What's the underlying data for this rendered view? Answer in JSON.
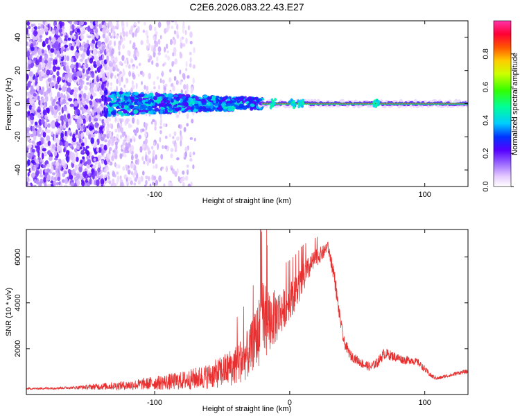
{
  "chart_data": [
    {
      "type": "heatmap",
      "title": "C2E6.2026.083.22.43.E27",
      "xlabel": "Height of straight line (km)",
      "ylabel": "Frequency (Hz)",
      "xlim": [
        -195,
        132
      ],
      "ylim": [
        -50,
        50
      ],
      "xticks": [
        -100,
        0,
        100
      ],
      "xtick_labels": [
        "-100",
        "",
        "100"
      ],
      "yticks": [
        -40,
        -20,
        0,
        20,
        40
      ],
      "ytick_labels": [
        "-40",
        "-20",
        "0",
        "20",
        "40"
      ],
      "colorbar": {
        "label": "Normalized spectral amplitude",
        "range": [
          0,
          1
        ],
        "ticks": [
          0.0,
          0.2,
          0.4,
          0.6,
          0.8
        ],
        "tick_labels": [
          "0.0",
          "0.2",
          "0.4",
          "0.6",
          "0.8"
        ]
      },
      "regions": [
        {
          "description": "sparse broadband noise",
          "x_range": [
            -195,
            -135
          ],
          "intensity": 0.12
        },
        {
          "description": "fading broadband noise",
          "x_range": [
            -135,
            -70
          ],
          "intensity": 0.05
        },
        {
          "description": "meteor echo onset",
          "x": -137,
          "freq_range": [
            -8,
            8
          ],
          "intensity": 0.3
        },
        {
          "description": "scattered echo band",
          "x_range": [
            -135,
            -20
          ],
          "freq_range": [
            -7,
            7
          ],
          "intensity": 0.35
        },
        {
          "description": "strong narrow line",
          "x_range": [
            -20,
            132
          ],
          "freq": 0,
          "intensity": 0.95
        },
        {
          "description": "line perturbations",
          "x": [
            -12,
            2,
            8,
            64
          ],
          "intensity": 0.4
        }
      ]
    },
    {
      "type": "line",
      "xlabel": "Height of straight line (km)",
      "ylabel": "SNR (10 * v/v)",
      "xlim": [
        -195,
        132
      ],
      "ylim": [
        0,
        7200
      ],
      "xticks": [
        -100,
        0,
        100
      ],
      "xtick_labels": [
        "-100",
        "0",
        "100"
      ],
      "yticks": [
        2000,
        4000,
        6000
      ],
      "ytick_labels": [
        "2000",
        "4000",
        "6000"
      ],
      "color": "#e83030",
      "series": [
        {
          "name": "SNR",
          "x": [
            -195,
            -160,
            -140,
            -120,
            -100,
            -80,
            -60,
            -50,
            -40,
            -30,
            -25,
            -20,
            -15,
            -10,
            -5,
            0,
            5,
            10,
            15,
            20,
            25,
            28,
            30,
            33,
            36,
            40,
            45,
            50,
            55,
            60,
            65,
            70,
            75,
            80,
            85,
            90,
            95,
            100,
            105,
            110,
            115,
            120,
            125,
            132
          ],
          "values": [
            250,
            300,
            350,
            400,
            500,
            600,
            800,
            1000,
            1300,
            1800,
            2500,
            3000,
            3200,
            3400,
            3700,
            4100,
            4500,
            5000,
            5600,
            6000,
            6200,
            6500,
            6000,
            5200,
            3800,
            2300,
            1700,
            1500,
            1300,
            1200,
            1400,
            1800,
            1700,
            1600,
            1500,
            1500,
            1400,
            1100,
            800,
            700,
            800,
            850,
            950,
            1000
          ],
          "noise_amplitude": [
            40,
            60,
            150,
            200,
            300,
            400,
            550,
            700,
            900,
            1100,
            1200,
            2000,
            1300,
            1200,
            900,
            800,
            750,
            700,
            500,
            400,
            300,
            250,
            300,
            400,
            300,
            250,
            220,
            200,
            200,
            200,
            220,
            250,
            220,
            200,
            180,
            180,
            150,
            150,
            100,
            80,
            80,
            80,
            90,
            90
          ]
        }
      ]
    }
  ]
}
